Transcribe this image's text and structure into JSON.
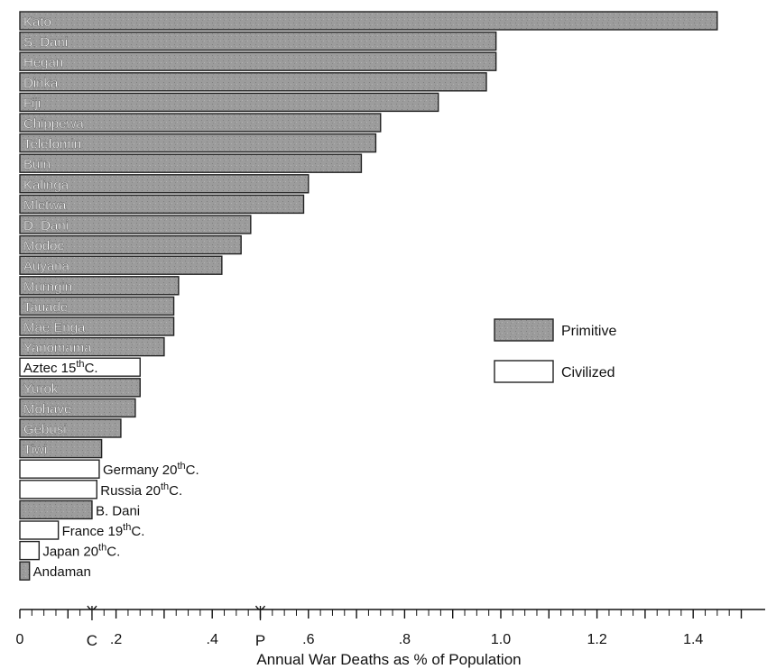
{
  "chart_data": {
    "type": "bar",
    "orientation": "horizontal",
    "xlabel": "Annual War Deaths as % of Population",
    "xlim": [
      0,
      1.5
    ],
    "x_tick_labels": [
      {
        "value": 0,
        "label": "0"
      },
      {
        "value": 0.2,
        "label": ".2"
      },
      {
        "value": 0.4,
        "label": ".4"
      },
      {
        "value": 0.6,
        "label": ".6"
      },
      {
        "value": 0.8,
        "label": ".8"
      },
      {
        "value": 1.0,
        "label": "1.0"
      },
      {
        "value": 1.2,
        "label": "1.2"
      },
      {
        "value": 1.4,
        "label": "1.4"
      }
    ],
    "axis_markers": [
      {
        "label": "C",
        "value": 0.15
      },
      {
        "label": "P",
        "value": 0.5
      }
    ],
    "legend": {
      "placement": "right",
      "entries": [
        {
          "key": "primitive",
          "label": "Primitive"
        },
        {
          "key": "civilized",
          "label": "Civilized"
        }
      ]
    },
    "colors": {
      "primitive": "#9a9a9a",
      "civilized": "#ffffff",
      "edge": "#222222"
    },
    "bars": [
      {
        "name": "Kato",
        "value": 1.45,
        "group": "primitive",
        "label_inside": true
      },
      {
        "name": "S. Dani",
        "value": 0.99,
        "group": "primitive",
        "label_inside": true
      },
      {
        "name": "Hegan",
        "value": 0.99,
        "group": "primitive",
        "label_inside": true
      },
      {
        "name": "Dinka",
        "value": 0.97,
        "group": "primitive",
        "label_inside": true
      },
      {
        "name": "Fiji",
        "value": 0.87,
        "group": "primitive",
        "label_inside": true
      },
      {
        "name": "Chippewa",
        "value": 0.75,
        "group": "primitive",
        "label_inside": true
      },
      {
        "name": "Telefomin",
        "value": 0.74,
        "group": "primitive",
        "label_inside": true
      },
      {
        "name": "Buin",
        "value": 0.71,
        "group": "primitive",
        "label_inside": true
      },
      {
        "name": "Kalinga",
        "value": 0.6,
        "group": "primitive",
        "label_inside": true
      },
      {
        "name": "Mletwa",
        "value": 0.59,
        "group": "primitive",
        "label_inside": true
      },
      {
        "name": "D. Dani",
        "value": 0.48,
        "group": "primitive",
        "label_inside": true
      },
      {
        "name": "Modoc",
        "value": 0.46,
        "group": "primitive",
        "label_inside": true
      },
      {
        "name": "Auyana",
        "value": 0.42,
        "group": "primitive",
        "label_inside": true
      },
      {
        "name": "Murngin",
        "value": 0.33,
        "group": "primitive",
        "label_inside": true
      },
      {
        "name": "Tauade",
        "value": 0.32,
        "group": "primitive",
        "label_inside": true
      },
      {
        "name": "Mae Enga",
        "value": 0.32,
        "group": "primitive",
        "label_inside": true
      },
      {
        "name": "Yanomama",
        "value": 0.3,
        "group": "primitive",
        "label_inside": true
      },
      {
        "name": "Aztec 15",
        "sup": "th",
        "suffix": "C.",
        "value": 0.25,
        "group": "civilized",
        "label_inside": true
      },
      {
        "name": "Yurok",
        "value": 0.25,
        "group": "primitive",
        "label_inside": true
      },
      {
        "name": "Mohave",
        "value": 0.24,
        "group": "primitive",
        "label_inside": true
      },
      {
        "name": "Gebusi",
        "value": 0.21,
        "group": "primitive",
        "label_inside": true
      },
      {
        "name": "Tiwi",
        "value": 0.17,
        "group": "primitive",
        "label_inside": true
      },
      {
        "name": "Germany 20",
        "sup": "th",
        "suffix": "C.",
        "value": 0.165,
        "group": "civilized",
        "label_inside": false
      },
      {
        "name": "Russia 20",
        "sup": "th",
        "suffix": "C.",
        "value": 0.16,
        "group": "civilized",
        "label_inside": false
      },
      {
        "name": "B. Dani",
        "value": 0.15,
        "group": "primitive",
        "label_inside": false
      },
      {
        "name": "France 19",
        "sup": "th",
        "suffix": "C.",
        "value": 0.08,
        "group": "civilized",
        "label_inside": false
      },
      {
        "name": "Japan 20",
        "sup": "th",
        "suffix": "C.",
        "value": 0.04,
        "group": "civilized",
        "label_inside": false
      },
      {
        "name": "Andaman",
        "value": 0.02,
        "group": "primitive",
        "label_inside": false
      }
    ]
  }
}
